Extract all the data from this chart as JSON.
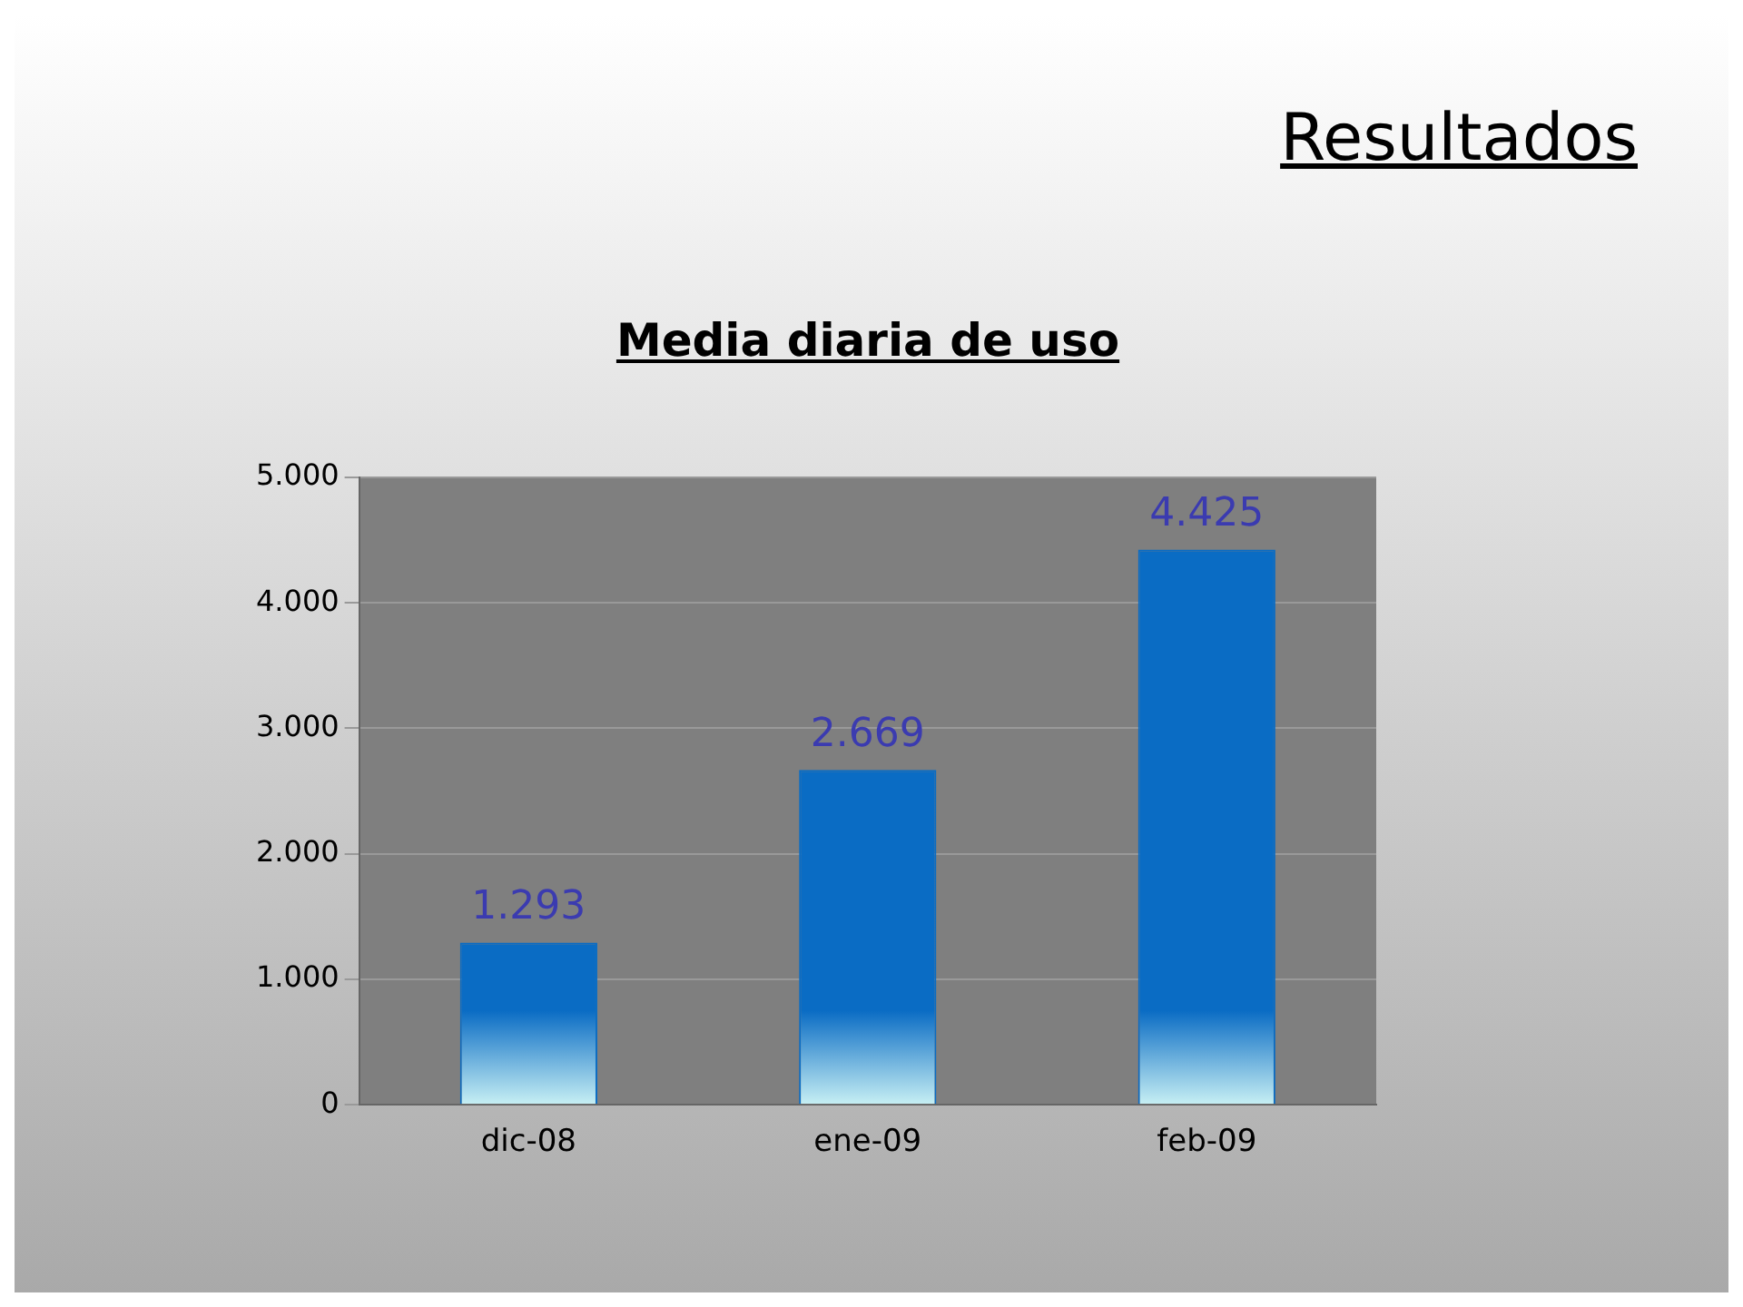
{
  "chart_data": {
    "type": "bar",
    "title": "Resultados",
    "subtitle": "Media diaria de uso",
    "categories": [
      "dic-08",
      "ene-09",
      "feb-09"
    ],
    "values": [
      1293,
      2669,
      4425
    ],
    "color": "#0a6cc4",
    "value_labels": [
      "1.293",
      "2.669",
      "4.425"
    ],
    "ylim": [
      0,
      5000
    ],
    "yticks": [
      {
        "value": 0,
        "label": "0"
      },
      {
        "value": 1000,
        "label": "1.000"
      },
      {
        "value": 2000,
        "label": "2.000"
      },
      {
        "value": 3000,
        "label": "3.000"
      },
      {
        "value": 4000,
        "label": "4.000"
      },
      {
        "value": 5000,
        "label": "5.000"
      }
    ],
    "grid": "y"
  }
}
